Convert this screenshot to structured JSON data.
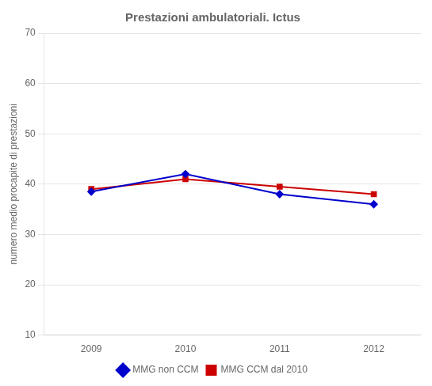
{
  "chart_data": {
    "type": "line",
    "title": "Prestazioni ambulatoriali. Ictus",
    "ylabel": "numero medio procapite di prestazioni",
    "x": [
      2009,
      2010,
      2011,
      2012
    ],
    "xlim": [
      2008.5,
      2012.5
    ],
    "xticks": [
      2009,
      2010,
      2011,
      2012
    ],
    "ylim": [
      10,
      70
    ],
    "yticks": [
      10,
      20,
      30,
      40,
      50,
      60,
      70
    ],
    "grid": true,
    "legend": "bottom",
    "series": [
      {
        "name": "MMG non CCM",
        "color": "#0000cc",
        "marker": "diamond",
        "values": [
          38.5,
          42.0,
          38.0,
          36.0
        ]
      },
      {
        "name": "MMG CCM dal 2010",
        "color": "#cc0000",
        "marker": "square",
        "values": [
          39.0,
          41.0,
          39.5,
          38.0
        ]
      }
    ]
  }
}
